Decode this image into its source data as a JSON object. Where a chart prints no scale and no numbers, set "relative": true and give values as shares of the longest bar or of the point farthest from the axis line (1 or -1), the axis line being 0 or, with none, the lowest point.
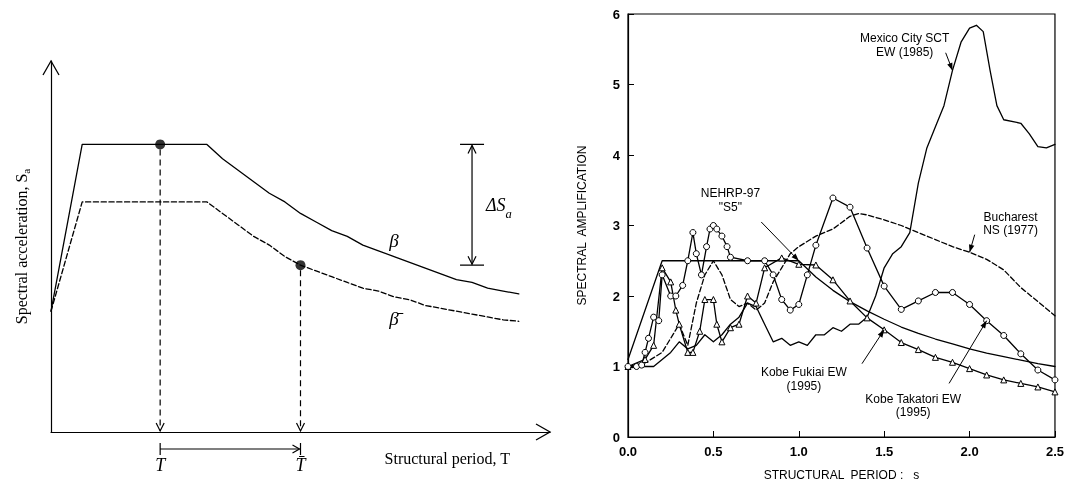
{
  "chart_data": [
    {
      "type": "line",
      "relative": true,
      "marker": "none",
      "xlabel": "Structural period, T",
      "ylabel": "Spectral acceleration, S$_{a}$",
      "categories": [
        null,
        null,
        null,
        null,
        null,
        null,
        null,
        "T",
        null,
        null,
        null,
        null,
        null,
        null,
        null,
        null,
        "T̄",
        null,
        null,
        null,
        null,
        null,
        null,
        null,
        null,
        null,
        null,
        null,
        null,
        null,
        null,
        null,
        null
      ],
      "series": [
        {
          "name": "β",
          "color": "#000000",
          "line_style": "solid",
          "values": [
            0.42,
            0.71,
            1,
            1,
            1,
            1,
            1,
            1,
            1,
            1,
            1,
            0.95,
            0.91,
            0.87,
            0.83,
            0.8,
            0.76,
            0.73,
            0.7,
            0.68,
            0.65,
            0.63,
            0.61,
            0.59,
            0.57,
            0.55,
            0.53,
            0.52,
            0.5,
            0.49,
            0.48,
            null,
            null
          ]
        },
        {
          "name": "β̄",
          "color": "#000000",
          "line_style": "dashed",
          "values": [
            0.42,
            0.61,
            0.8,
            0.8,
            0.8,
            0.8,
            0.8,
            0.8,
            0.8,
            0.8,
            0.8,
            0.76,
            0.72,
            0.68,
            0.65,
            0.61,
            0.58,
            0.56,
            0.54,
            0.52,
            0.5,
            0.49,
            0.47,
            0.46,
            0.44,
            0.43,
            0.42,
            0.41,
            0.4,
            0.39,
            0.385,
            null,
            null
          ]
        },
        {
          "type": "scatter",
          "color": "#000000",
          "marker": "circle",
          "x": [
            "T",
            "T̄"
          ],
          "values": [
            1,
            0.58
          ]
        }
      ],
      "annotations": [
        "ΔS$_{a}$"
      ]
    },
    {
      "type": "line",
      "marker": "none",
      "xlabel": "STRUCTURAL  PERIOD :   s",
      "ylabel": "SPECTRAL  AMPLIFICATION",
      "xlim": [
        0,
        2.5
      ],
      "xticks": [
        {
          "value": 0,
          "label": "0.0"
        },
        0.5,
        {
          "value": 1,
          "label": "1.0"
        },
        1.5,
        {
          "value": 2,
          "label": "2.0"
        },
        2.5
      ],
      "ylim": [
        0,
        6
      ],
      "yticks": [
        0,
        1,
        2,
        3,
        4,
        5,
        6
      ],
      "series": [
        {
          "name": "NEHRP-97\n\"S5\"",
          "color": "#000000",
          "line_style": "solid",
          "x": [
            0,
            0.2,
            1.0,
            1.1,
            1.2,
            1.3,
            1.4,
            1.5,
            1.6,
            1.7,
            1.8,
            1.9,
            2.0,
            2.1,
            2.2,
            2.3,
            2.4,
            2.5
          ],
          "values": [
            1.1,
            2.5,
            2.5,
            2.27,
            2.08,
            1.92,
            1.79,
            1.67,
            1.56,
            1.47,
            1.39,
            1.32,
            1.25,
            1.19,
            1.14,
            1.09,
            1.04,
            1.0
          ]
        },
        {
          "name": "Mexico City SCT\nEW (1985)",
          "color": "#000000",
          "line_style": "solid",
          "x": [
            0,
            0.1,
            0.15,
            0.2,
            0.25,
            0.3,
            0.35,
            0.4,
            0.45,
            0.5,
            0.55,
            0.6,
            0.65,
            0.7,
            0.75,
            0.8,
            0.85,
            0.9,
            0.95,
            1.0,
            1.05,
            1.1,
            1.15,
            1.2,
            1.25,
            1.3,
            1.35,
            1.4,
            1.45,
            1.5,
            1.55,
            1.6,
            1.65,
            1.7,
            1.75,
            1.8,
            1.85,
            1.9,
            1.95,
            2.0,
            2.04,
            2.08,
            2.12,
            2.16,
            2.2,
            2.3,
            2.35,
            2.4,
            2.45,
            2.5
          ],
          "values": [
            0.98,
            1.0,
            1.0,
            1.1,
            1.2,
            1.35,
            1.25,
            1.3,
            1.45,
            1.35,
            1.45,
            1.6,
            1.7,
            1.9,
            1.85,
            1.6,
            1.35,
            1.4,
            1.3,
            1.35,
            1.3,
            1.45,
            1.45,
            1.55,
            1.5,
            1.6,
            1.6,
            1.7,
            2.0,
            2.4,
            2.6,
            2.7,
            2.9,
            3.6,
            4.1,
            4.4,
            4.7,
            5.2,
            5.6,
            5.8,
            5.84,
            5.75,
            5.2,
            4.7,
            4.5,
            4.45,
            4.3,
            4.12,
            4.1,
            4.15
          ]
        },
        {
          "name": "Bucharest\nNS (1977)",
          "color": "#000000",
          "line_style": "dashed",
          "x": [
            0,
            0.1,
            0.2,
            0.25,
            0.3,
            0.35,
            0.4,
            0.45,
            0.5,
            0.55,
            0.6,
            0.65,
            0.7,
            0.75,
            0.8,
            0.85,
            0.9,
            0.95,
            1.0,
            1.1,
            1.2,
            1.3,
            1.35,
            1.4,
            1.5,
            1.6,
            1.7,
            1.8,
            1.9,
            2.0,
            2.1,
            2.2,
            2.3,
            2.4,
            2.5
          ],
          "values": [
            1.0,
            1.05,
            1.2,
            1.4,
            1.6,
            1.3,
            1.9,
            2.3,
            2.5,
            2.3,
            1.95,
            1.85,
            1.9,
            1.8,
            1.9,
            2.2,
            2.4,
            2.6,
            2.7,
            2.85,
            2.95,
            3.13,
            3.17,
            3.15,
            3.08,
            3.0,
            2.9,
            2.8,
            2.7,
            2.62,
            2.52,
            2.37,
            2.12,
            1.92,
            1.72
          ]
        },
        {
          "name": "Kobe Fukiai EW\n(1995)",
          "color": "#000000",
          "line_style": "solid",
          "marker": "triangle",
          "x": [
            0,
            0.1,
            0.15,
            0.2,
            0.25,
            0.28,
            0.3,
            0.35,
            0.38,
            0.42,
            0.45,
            0.5,
            0.52,
            0.55,
            0.6,
            0.65,
            0.7,
            0.75,
            0.8,
            0.9,
            1.0,
            1.1,
            1.2,
            1.3,
            1.4,
            1.5,
            1.6,
            1.7,
            1.8,
            1.9,
            2.0,
            2.1,
            2.2,
            2.3,
            2.4,
            2.5
          ],
          "values": [
            1.0,
            1.1,
            1.3,
            2.4,
            2.2,
            1.8,
            1.6,
            1.2,
            1.2,
            1.5,
            1.95,
            1.95,
            1.6,
            1.35,
            1.55,
            1.6,
            2.0,
            1.9,
            2.4,
            2.54,
            2.45,
            2.44,
            2.23,
            1.93,
            1.69,
            1.52,
            1.34,
            1.24,
            1.13,
            1.06,
            0.97,
            0.88,
            0.81,
            0.76,
            0.71,
            0.64
          ]
        },
        {
          "name": "Kobe Takatori EW\n(1995)",
          "color": "#000000",
          "line_style": "solid",
          "marker": "circle",
          "x": [
            0,
            0.05,
            0.08,
            0.1,
            0.12,
            0.15,
            0.18,
            0.2,
            0.25,
            0.28,
            0.32,
            0.35,
            0.38,
            0.4,
            0.43,
            0.46,
            0.48,
            0.5,
            0.52,
            0.55,
            0.58,
            0.6,
            0.7,
            0.8,
            0.85,
            0.9,
            0.95,
            1.0,
            1.05,
            1.1,
            1.2,
            1.3,
            1.4,
            1.5,
            1.6,
            1.7,
            1.8,
            1.9,
            2.0,
            2.1,
            2.2,
            2.3,
            2.4,
            2.5
          ],
          "values": [
            1.0,
            1.0,
            1.02,
            1.2,
            1.4,
            1.7,
            1.65,
            2.3,
            2.0,
            2.0,
            2.15,
            2.5,
            2.9,
            2.6,
            2.3,
            2.7,
            2.95,
            3.0,
            2.95,
            2.85,
            2.7,
            2.55,
            2.5,
            2.5,
            2.3,
            1.95,
            1.8,
            1.88,
            2.3,
            2.72,
            3.39,
            3.26,
            2.68,
            2.14,
            1.81,
            1.93,
            2.05,
            2.05,
            1.88,
            1.65,
            1.44,
            1.18,
            0.95,
            0.81
          ]
        }
      ]
    }
  ]
}
